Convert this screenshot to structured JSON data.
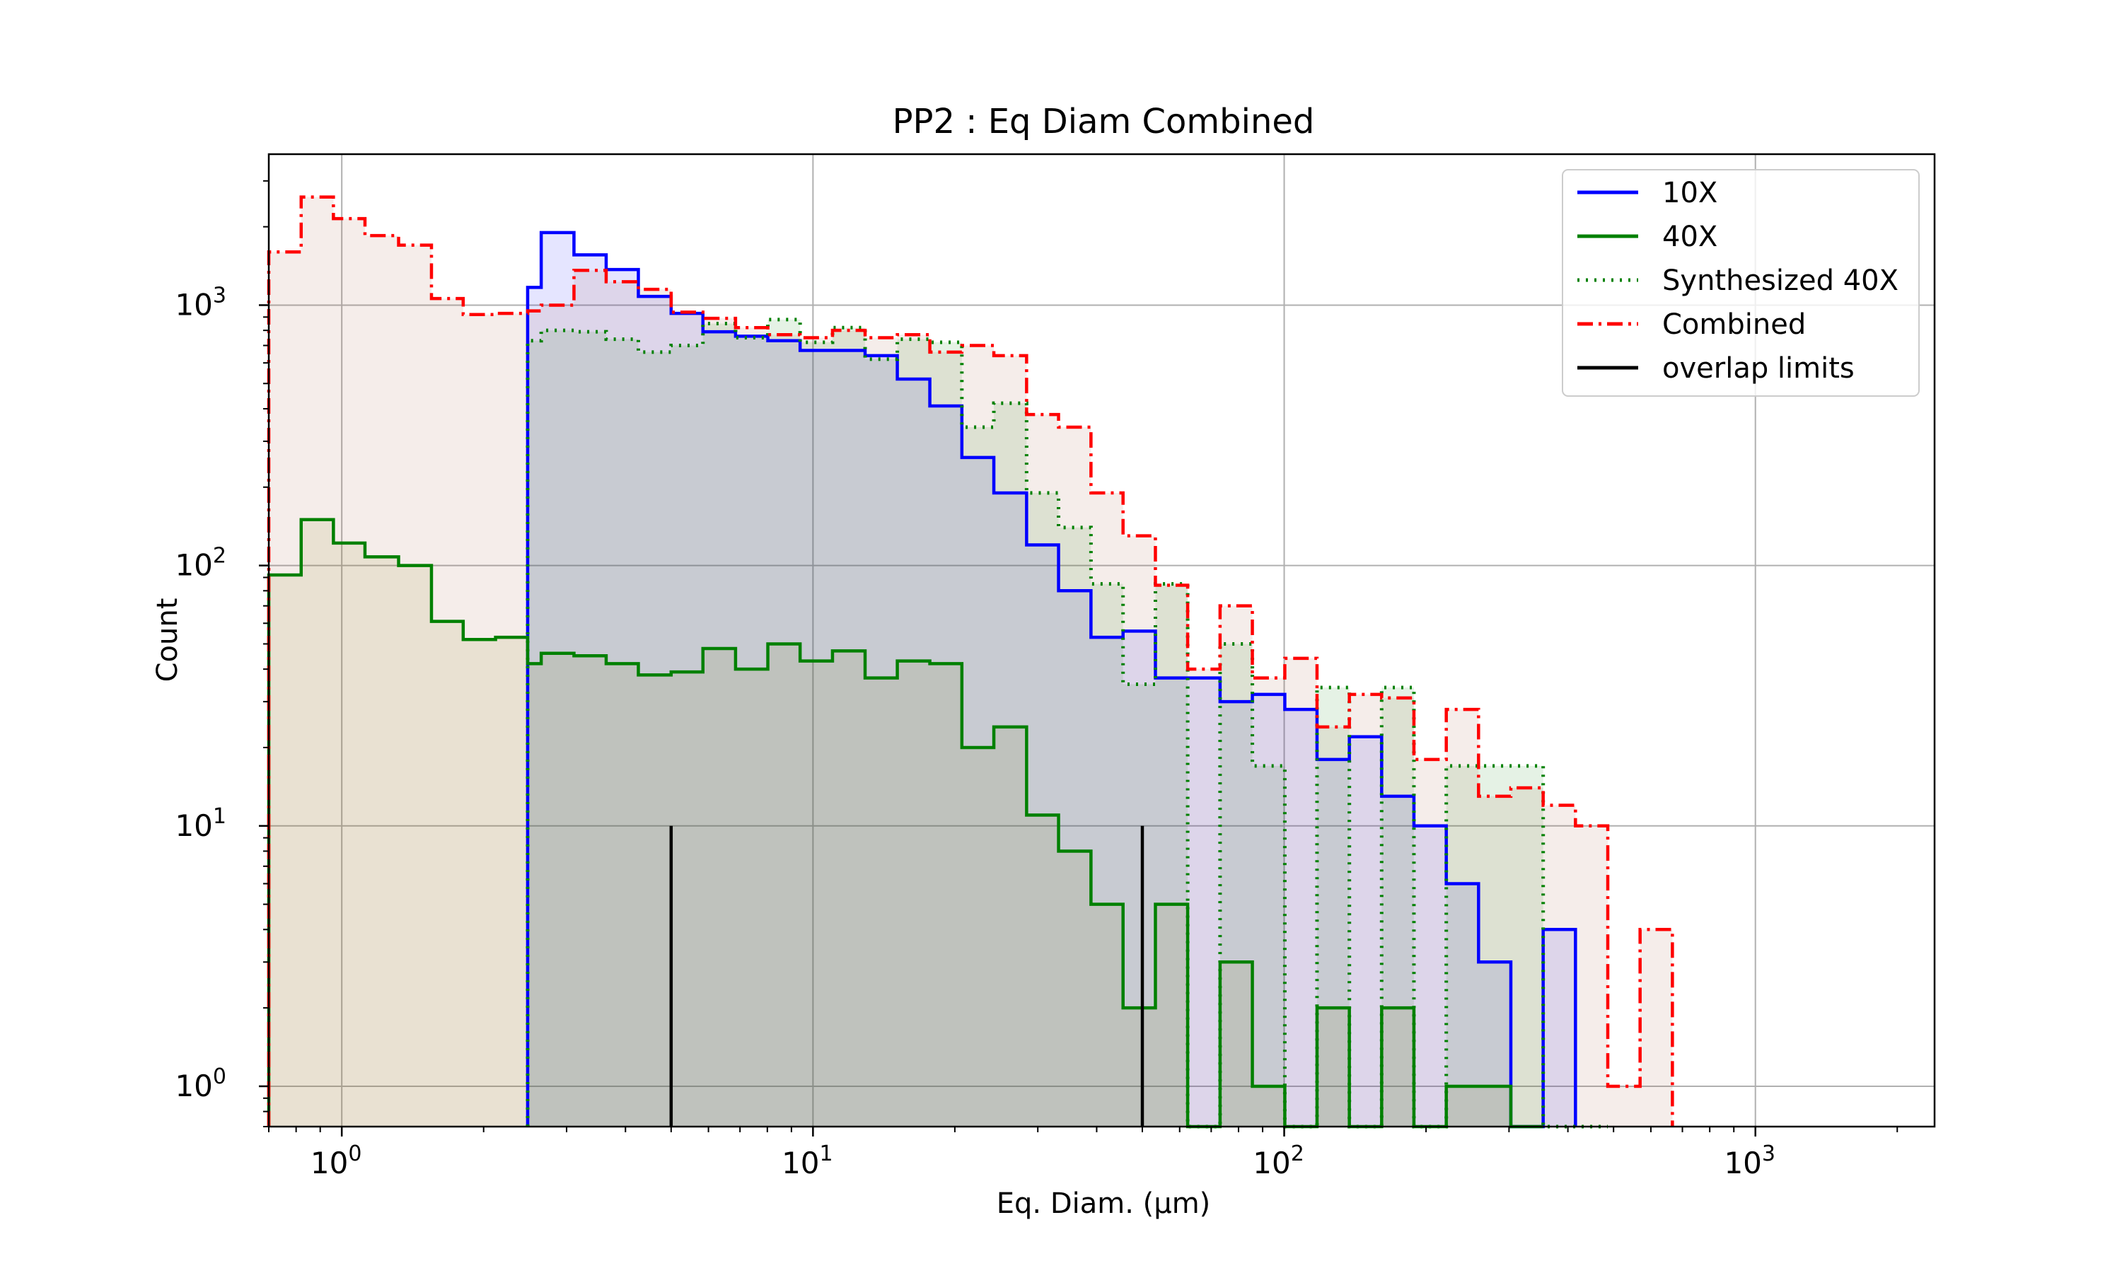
{
  "chart_data": {
    "type": "histogram-step",
    "title": "PP2 : Eq Diam Combined",
    "xlabel": "Eq. Diam. (µm)",
    "ylabel": "Count",
    "xscale": "log",
    "yscale": "log",
    "xlim": [
      0.7,
      2400
    ],
    "ylim": [
      0.7,
      3800
    ],
    "x_ticks": [
      {
        "value": 1,
        "base": "10",
        "exp": "0"
      },
      {
        "value": 10,
        "base": "10",
        "exp": "1"
      },
      {
        "value": 100,
        "base": "10",
        "exp": "2"
      },
      {
        "value": 1000,
        "base": "10",
        "exp": "3"
      }
    ],
    "y_ticks": [
      {
        "value": 1,
        "base": "10",
        "exp": "0"
      },
      {
        "value": 10,
        "base": "10",
        "exp": "1"
      },
      {
        "value": 100,
        "base": "10",
        "exp": "2"
      },
      {
        "value": 1000,
        "base": "10",
        "exp": "3"
      }
    ],
    "grid": true,
    "legend_position": "top-right",
    "bin_edges": [
      0.7,
      0.82,
      0.96,
      1.12,
      1.32,
      1.55,
      1.81,
      2.12,
      2.48,
      2.65,
      3.11,
      3.64,
      4.26,
      5.0,
      5.84,
      6.85,
      8.02,
      9.39,
      11.0,
      12.9,
      15.1,
      17.7,
      20.7,
      24.2,
      28.4,
      33.2,
      38.9,
      45.5,
      53.3,
      62.4,
      73.1,
      85.6,
      100.3,
      117.4,
      137.5,
      161.0,
      188.5,
      220.8,
      258.5,
      302.7,
      354.5,
      415.1,
      486.1,
      569.2,
      666.6,
      780.6
    ],
    "series": [
      {
        "name": "10X",
        "color": "#0000ff",
        "style": "solid",
        "fill": "#0000ff",
        "start": 2.65,
        "values": [
          1170,
          1900,
          1560,
          1370,
          1080,
          930,
          790,
          760,
          730,
          670,
          670,
          640,
          520,
          410,
          260,
          190,
          120,
          80,
          53,
          56,
          37,
          37,
          30,
          32,
          28,
          18,
          22,
          13,
          10,
          6,
          3,
          0,
          4
        ],
        "edges_index_start": 8
      },
      {
        "name": "40X",
        "color": "#008000",
        "style": "solid",
        "fill": "#808000",
        "values": [
          92,
          150,
          122,
          108,
          100,
          61,
          52,
          53,
          42,
          46,
          45,
          42,
          38,
          39,
          48,
          40,
          50,
          43,
          47,
          37,
          43,
          42,
          20,
          24,
          11,
          8,
          5,
          2,
          5,
          0,
          3,
          1,
          0,
          2,
          0,
          2,
          0,
          1,
          1,
          0
        ],
        "edges_index_start": 0
      },
      {
        "name": "Synthesized 40X",
        "color": "#008000",
        "style": "dotted",
        "fill": "#008000",
        "start": 2.65,
        "values": [
          730,
          800,
          790,
          740,
          660,
          700,
          850,
          750,
          880,
          720,
          820,
          620,
          740,
          720,
          340,
          420,
          190,
          140,
          85,
          35,
          85,
          0,
          50,
          17,
          0,
          34,
          0,
          34,
          0,
          17,
          17,
          17,
          0,
          0
        ],
        "edges_index_start": 8
      },
      {
        "name": "Combined",
        "color": "#ff0000",
        "style": "dashdot",
        "fill": "#a0522d",
        "values": [
          1600,
          2600,
          2150,
          1850,
          1700,
          1060,
          920,
          930,
          950,
          1000,
          1360,
          1230,
          1150,
          940,
          890,
          820,
          770,
          750,
          800,
          750,
          770,
          660,
          700,
          640,
          380,
          340,
          190,
          130,
          84,
          40,
          70,
          37,
          44,
          24,
          32,
          31,
          18,
          28,
          13,
          14,
          12,
          10,
          1,
          4
        ],
        "edges_index_start": 0
      },
      {
        "name": "overlap limits",
        "color": "#000000",
        "style": "solid",
        "x": [
          5,
          50
        ],
        "y_top": 10
      }
    ]
  }
}
